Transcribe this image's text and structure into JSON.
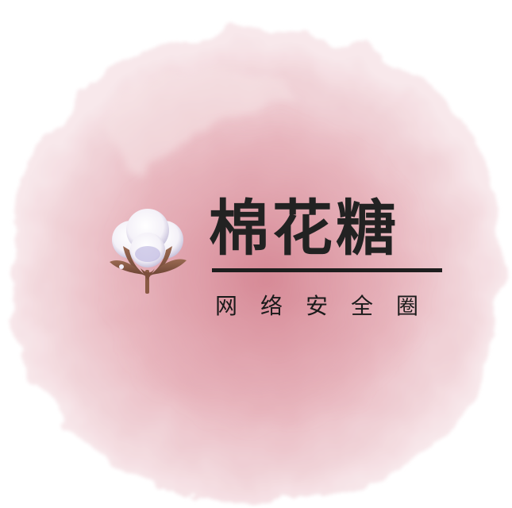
{
  "logo": {
    "title": "棉花糖",
    "subtitle": "网络安全圈",
    "icon": "cotton-boll-icon"
  },
  "colors": {
    "background": "#ffffff",
    "splash_light": "#f3dde1",
    "splash_mid": "#e7b5bd",
    "splash_dark": "#d9939e",
    "text": "#222222"
  }
}
